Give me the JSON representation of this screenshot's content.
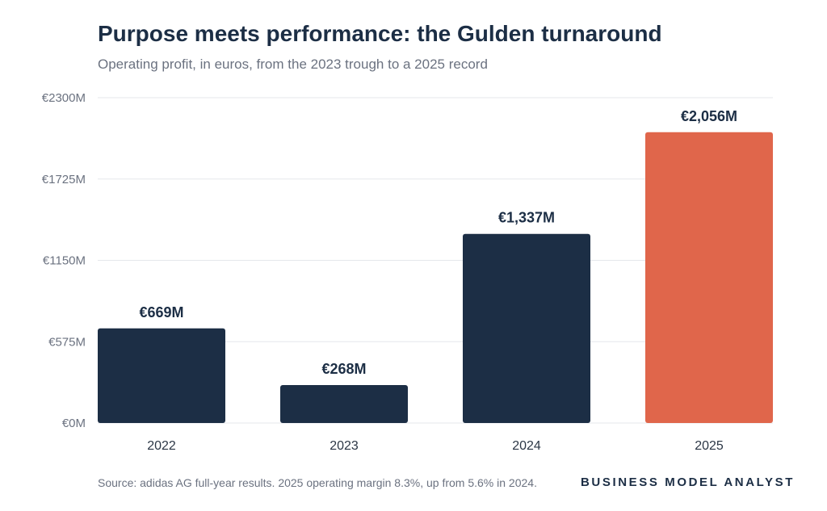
{
  "chart_data": {
    "type": "bar",
    "title": "Purpose meets performance: the Gulden turnaround",
    "subtitle": "Operating profit, in euros, from the 2023 trough to a 2025 record",
    "categories": [
      "2022",
      "2023",
      "2024",
      "2025"
    ],
    "values": [
      669,
      268,
      1337,
      2056
    ],
    "data_labels": [
      "€669M",
      "€268M",
      "€1,337M",
      "€2,056M"
    ],
    "y_ticks": [
      0,
      575,
      1150,
      1725,
      2300
    ],
    "y_tick_labels": [
      "€0M",
      "€575M",
      "€1150M",
      "€1725M",
      "€2300M"
    ],
    "ylim": [
      0,
      2300
    ],
    "xlabel": "",
    "ylabel": "",
    "grid": true,
    "colors": [
      "#1c2e45",
      "#1c2e45",
      "#1c2e45",
      "#e0664b"
    ]
  },
  "footer": {
    "source": "Source: adidas AG full-year results. 2025 operating margin 8.3%, up from 5.6% in 2024.",
    "brand": "BUSINESS MODEL ANALYST"
  }
}
